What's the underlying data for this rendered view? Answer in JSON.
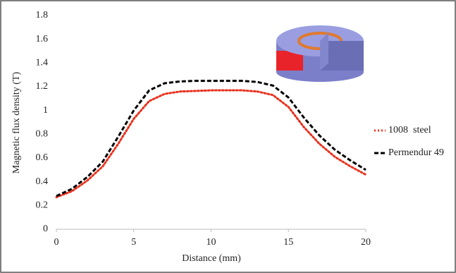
{
  "chart_data": {
    "type": "line",
    "xlabel": "Distance (mm)",
    "ylabel": "Magnetic flux density (T)",
    "x": [
      0,
      1,
      2,
      3,
      4,
      5,
      6,
      7,
      8,
      9,
      10,
      11,
      12,
      13,
      14,
      15,
      16,
      17,
      18,
      19,
      20
    ],
    "series": [
      {
        "name": "1008  steel",
        "color": "#e8321e",
        "style": "dotted",
        "values": [
          0.27,
          0.32,
          0.41,
          0.53,
          0.72,
          0.93,
          1.08,
          1.14,
          1.16,
          1.165,
          1.17,
          1.17,
          1.17,
          1.16,
          1.13,
          1.03,
          0.86,
          0.72,
          0.61,
          0.53,
          0.46
        ]
      },
      {
        "name": "Permendur 49",
        "color": "#000000",
        "style": "dashed",
        "values": [
          0.28,
          0.34,
          0.44,
          0.57,
          0.78,
          1.0,
          1.17,
          1.23,
          1.245,
          1.25,
          1.25,
          1.25,
          1.25,
          1.24,
          1.21,
          1.11,
          0.94,
          0.79,
          0.67,
          0.58,
          0.5
        ]
      }
    ],
    "xlim": [
      0,
      20
    ],
    "xticks": [
      0,
      5,
      10,
      15,
      20
    ],
    "ylim": [
      0,
      1.8
    ],
    "yticks": [
      0,
      0.2,
      0.4,
      0.6,
      0.8,
      1,
      1.2,
      1.4,
      1.6,
      1.8
    ],
    "grid": false
  }
}
